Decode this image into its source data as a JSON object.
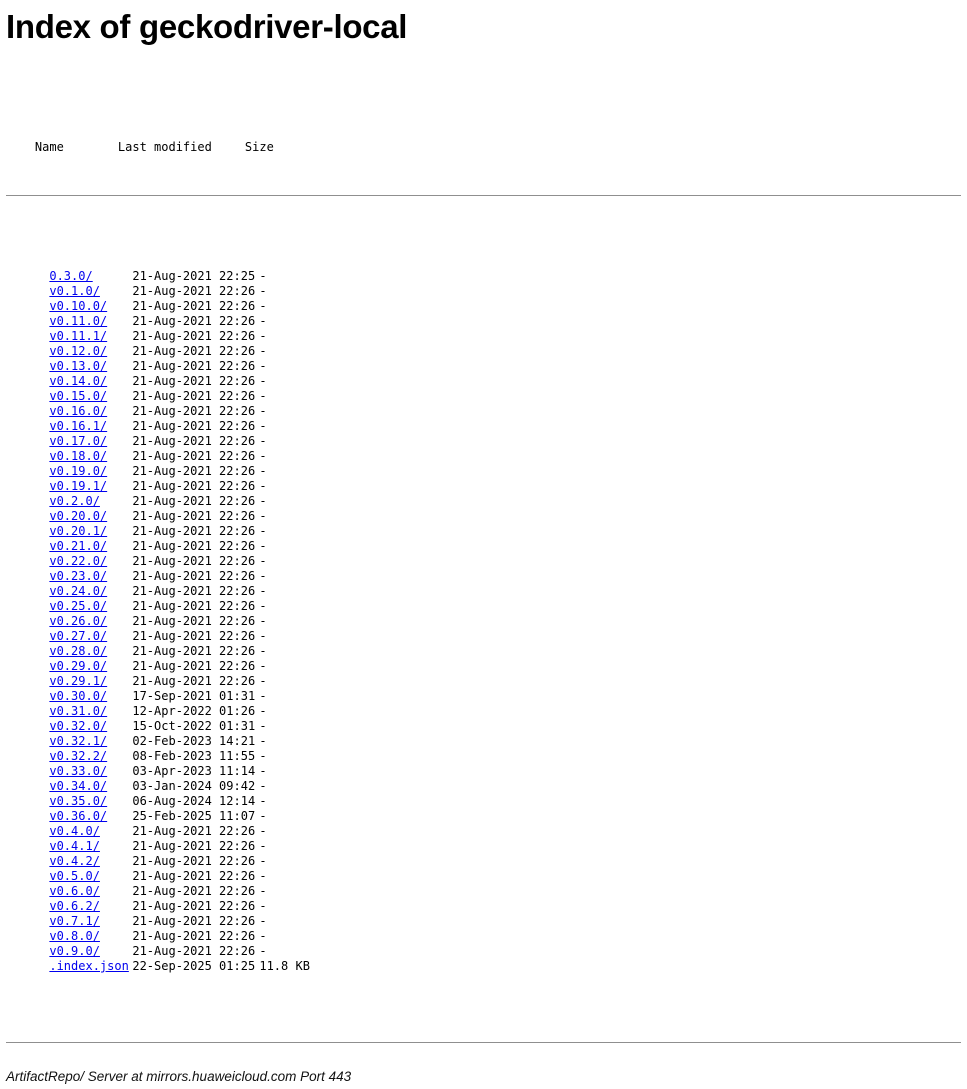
{
  "page": {
    "title": "Index of geckodriver-local",
    "footer": "ArtifactRepo/ Server at mirrors.huaweicloud.com Port 443"
  },
  "listing": {
    "headers": {
      "name": "Name",
      "last_modified": "Last modified",
      "size": "Size"
    },
    "link_color": "#0000ee",
    "rows": [
      {
        "name": "0.3.0/",
        "last_modified": "21-Aug-2021 22:25",
        "size": "-"
      },
      {
        "name": "v0.1.0/",
        "last_modified": "21-Aug-2021 22:26",
        "size": "-"
      },
      {
        "name": "v0.10.0/",
        "last_modified": "21-Aug-2021 22:26",
        "size": "-"
      },
      {
        "name": "v0.11.0/",
        "last_modified": "21-Aug-2021 22:26",
        "size": "-"
      },
      {
        "name": "v0.11.1/",
        "last_modified": "21-Aug-2021 22:26",
        "size": "-"
      },
      {
        "name": "v0.12.0/",
        "last_modified": "21-Aug-2021 22:26",
        "size": "-"
      },
      {
        "name": "v0.13.0/",
        "last_modified": "21-Aug-2021 22:26",
        "size": "-"
      },
      {
        "name": "v0.14.0/",
        "last_modified": "21-Aug-2021 22:26",
        "size": "-"
      },
      {
        "name": "v0.15.0/",
        "last_modified": "21-Aug-2021 22:26",
        "size": "-"
      },
      {
        "name": "v0.16.0/",
        "last_modified": "21-Aug-2021 22:26",
        "size": "-"
      },
      {
        "name": "v0.16.1/",
        "last_modified": "21-Aug-2021 22:26",
        "size": "-"
      },
      {
        "name": "v0.17.0/",
        "last_modified": "21-Aug-2021 22:26",
        "size": "-"
      },
      {
        "name": "v0.18.0/",
        "last_modified": "21-Aug-2021 22:26",
        "size": "-"
      },
      {
        "name": "v0.19.0/",
        "last_modified": "21-Aug-2021 22:26",
        "size": "-"
      },
      {
        "name": "v0.19.1/",
        "last_modified": "21-Aug-2021 22:26",
        "size": "-"
      },
      {
        "name": "v0.2.0/",
        "last_modified": "21-Aug-2021 22:26",
        "size": "-"
      },
      {
        "name": "v0.20.0/",
        "last_modified": "21-Aug-2021 22:26",
        "size": "-"
      },
      {
        "name": "v0.20.1/",
        "last_modified": "21-Aug-2021 22:26",
        "size": "-"
      },
      {
        "name": "v0.21.0/",
        "last_modified": "21-Aug-2021 22:26",
        "size": "-"
      },
      {
        "name": "v0.22.0/",
        "last_modified": "21-Aug-2021 22:26",
        "size": "-"
      },
      {
        "name": "v0.23.0/",
        "last_modified": "21-Aug-2021 22:26",
        "size": "-"
      },
      {
        "name": "v0.24.0/",
        "last_modified": "21-Aug-2021 22:26",
        "size": "-"
      },
      {
        "name": "v0.25.0/",
        "last_modified": "21-Aug-2021 22:26",
        "size": "-"
      },
      {
        "name": "v0.26.0/",
        "last_modified": "21-Aug-2021 22:26",
        "size": "-"
      },
      {
        "name": "v0.27.0/",
        "last_modified": "21-Aug-2021 22:26",
        "size": "-"
      },
      {
        "name": "v0.28.0/",
        "last_modified": "21-Aug-2021 22:26",
        "size": "-"
      },
      {
        "name": "v0.29.0/",
        "last_modified": "21-Aug-2021 22:26",
        "size": "-"
      },
      {
        "name": "v0.29.1/",
        "last_modified": "21-Aug-2021 22:26",
        "size": "-"
      },
      {
        "name": "v0.30.0/",
        "last_modified": "17-Sep-2021 01:31",
        "size": "-"
      },
      {
        "name": "v0.31.0/",
        "last_modified": "12-Apr-2022 01:26",
        "size": "-"
      },
      {
        "name": "v0.32.0/",
        "last_modified": "15-Oct-2022 01:31",
        "size": "-"
      },
      {
        "name": "v0.32.1/",
        "last_modified": "02-Feb-2023 14:21",
        "size": "-"
      },
      {
        "name": "v0.32.2/",
        "last_modified": "08-Feb-2023 11:55",
        "size": "-"
      },
      {
        "name": "v0.33.0/",
        "last_modified": "03-Apr-2023 11:14",
        "size": "-"
      },
      {
        "name": "v0.34.0/",
        "last_modified": "03-Jan-2024 09:42",
        "size": "-"
      },
      {
        "name": "v0.35.0/",
        "last_modified": "06-Aug-2024 12:14",
        "size": "-"
      },
      {
        "name": "v0.36.0/",
        "last_modified": "25-Feb-2025 11:07",
        "size": "-"
      },
      {
        "name": "v0.4.0/",
        "last_modified": "21-Aug-2021 22:26",
        "size": "-"
      },
      {
        "name": "v0.4.1/",
        "last_modified": "21-Aug-2021 22:26",
        "size": "-"
      },
      {
        "name": "v0.4.2/",
        "last_modified": "21-Aug-2021 22:26",
        "size": "-"
      },
      {
        "name": "v0.5.0/",
        "last_modified": "21-Aug-2021 22:26",
        "size": "-"
      },
      {
        "name": "v0.6.0/",
        "last_modified": "21-Aug-2021 22:26",
        "size": "-"
      },
      {
        "name": "v0.6.2/",
        "last_modified": "21-Aug-2021 22:26",
        "size": "-"
      },
      {
        "name": "v0.7.1/",
        "last_modified": "21-Aug-2021 22:26",
        "size": "-"
      },
      {
        "name": "v0.8.0/",
        "last_modified": "21-Aug-2021 22:26",
        "size": "-"
      },
      {
        "name": "v0.9.0/",
        "last_modified": "21-Aug-2021 22:26",
        "size": "-"
      },
      {
        "name": ".index.json",
        "last_modified": "22-Sep-2025 01:25",
        "size": "11.8 KB"
      }
    ]
  }
}
